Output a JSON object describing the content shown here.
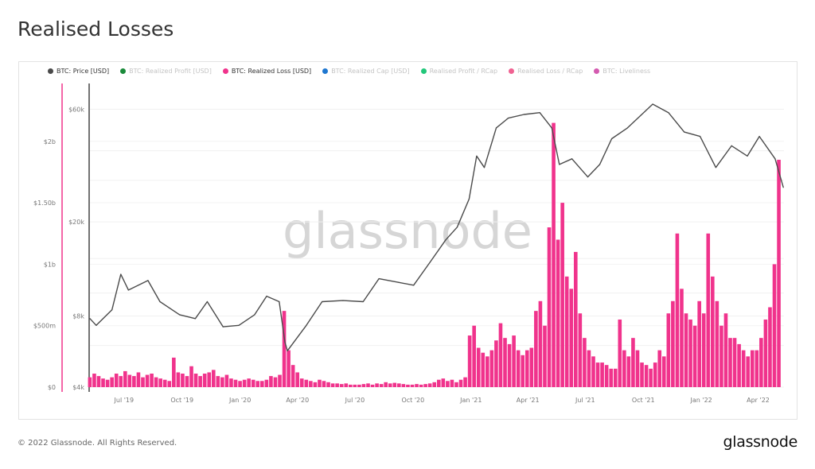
{
  "title": "Realised Losses",
  "footer": "© 2022 Glassnode. All Rights Reserved.",
  "logo_text": "glassnode",
  "watermark": "glassnode",
  "legend": [
    {
      "label": "BTC: Price [USD]",
      "color": "#4a4a4a",
      "active": true
    },
    {
      "label": "BTC: Realized Profit [USD]",
      "color": "#1a8a3a",
      "active": false
    },
    {
      "label": "BTC: Realized Loss [USD]",
      "color": "#f0338c",
      "active": true
    },
    {
      "label": "BTC: Realized Cap [USD]",
      "color": "#1f77d0",
      "active": false
    },
    {
      "label": "Realised Profit / RCap",
      "color": "#22c77a",
      "active": false
    },
    {
      "label": "Realised Loss / RCap",
      "color": "#f06292",
      "active": false
    },
    {
      "label": "BTC: Liveliness",
      "color": "#d45bb0",
      "active": false
    }
  ],
  "chart_data": {
    "type": "bar+line",
    "title": "Realised Losses",
    "x_range": [
      "2019-05-08",
      "2022-05-12"
    ],
    "x_ticks": [
      {
        "date": "2019-07-01",
        "label": "Jul '19"
      },
      {
        "date": "2019-10-01",
        "label": "Oct '19"
      },
      {
        "date": "2020-01-01",
        "label": "Jan '20"
      },
      {
        "date": "2020-04-01",
        "label": "Apr '20"
      },
      {
        "date": "2020-07-01",
        "label": "Jul '20"
      },
      {
        "date": "2020-10-01",
        "label": "Oct '20"
      },
      {
        "date": "2021-01-01",
        "label": "Jan '21"
      },
      {
        "date": "2021-04-01",
        "label": "Apr '21"
      },
      {
        "date": "2021-07-01",
        "label": "Jul '21"
      },
      {
        "date": "2021-10-01",
        "label": "Oct '21"
      },
      {
        "date": "2022-01-01",
        "label": "Jan '22"
      },
      {
        "date": "2022-04-01",
        "label": "Apr '22"
      }
    ],
    "left_axis": {
      "series": "BTC: Realized Loss [USD]",
      "scale": "linear",
      "range": [
        0,
        2300000000
      ],
      "ticks": [
        {
          "v": 0,
          "label": "$0"
        },
        {
          "v": 500000000,
          "label": "$500m"
        },
        {
          "v": 1000000000,
          "label": "$1b"
        },
        {
          "v": 1500000000,
          "label": "$1.50b"
        },
        {
          "v": 2000000000,
          "label": "$2b"
        }
      ]
    },
    "right_axis": {
      "series": "BTC: Price [USD]",
      "scale": "log",
      "range": [
        4000,
        68000
      ],
      "ticks": [
        {
          "v": 4000,
          "label": "$4k"
        },
        {
          "v": 8000,
          "label": "$8k"
        },
        {
          "v": 20000,
          "label": "$20k"
        },
        {
          "v": 60000,
          "label": "$60k"
        }
      ]
    },
    "grid": true,
    "legend_position": "top-left",
    "series": [
      {
        "name": "BTC: Realized Loss [USD]",
        "kind": "bar",
        "color": "#f0338c",
        "unit": "USD millions",
        "start": "2019-05-08",
        "interval_days": 7,
        "values": [
          80,
          110,
          90,
          70,
          60,
          80,
          110,
          90,
          130,
          100,
          90,
          120,
          80,
          100,
          110,
          80,
          70,
          60,
          50,
          240,
          120,
          110,
          90,
          170,
          110,
          90,
          110,
          120,
          140,
          90,
          80,
          100,
          70,
          60,
          50,
          60,
          70,
          60,
          50,
          50,
          60,
          90,
          80,
          100,
          620,
          300,
          180,
          120,
          70,
          60,
          50,
          40,
          60,
          50,
          40,
          30,
          30,
          25,
          30,
          20,
          20,
          20,
          25,
          30,
          20,
          30,
          25,
          40,
          30,
          35,
          30,
          25,
          20,
          20,
          25,
          20,
          25,
          30,
          40,
          60,
          70,
          50,
          60,
          40,
          60,
          80,
          420,
          500,
          320,
          280,
          250,
          300,
          380,
          520,
          400,
          350,
          420,
          300,
          260,
          300,
          320,
          620,
          700,
          500,
          1300,
          2150,
          1200,
          1500,
          900,
          800,
          1100,
          600,
          400,
          300,
          250,
          200,
          200,
          180,
          150,
          150,
          550,
          300,
          250,
          400,
          300,
          200,
          180,
          150,
          200,
          300,
          250,
          600,
          700,
          1250,
          800,
          600,
          550,
          500,
          700,
          600,
          1250,
          900,
          700,
          500,
          600,
          400,
          400,
          350,
          300,
          250,
          300,
          300,
          400,
          550,
          650,
          1000,
          1850
        ]
      },
      {
        "name": "BTC: Price [USD]",
        "kind": "line",
        "color": "#4a4a4a",
        "points": [
          [
            "2019-05-08",
            7800
          ],
          [
            "2019-05-18",
            7300
          ],
          [
            "2019-06-12",
            8500
          ],
          [
            "2019-06-26",
            12000
          ],
          [
            "2019-07-08",
            10300
          ],
          [
            "2019-08-08",
            11300
          ],
          [
            "2019-08-27",
            9200
          ],
          [
            "2019-09-27",
            8100
          ],
          [
            "2019-10-22",
            7800
          ],
          [
            "2019-11-10",
            9200
          ],
          [
            "2019-12-05",
            7200
          ],
          [
            "2019-12-30",
            7300
          ],
          [
            "2020-01-24",
            8100
          ],
          [
            "2020-02-12",
            9700
          ],
          [
            "2020-03-03",
            9200
          ],
          [
            "2020-03-12",
            6200
          ],
          [
            "2020-03-16",
            5700
          ],
          [
            "2020-04-15",
            7300
          ],
          [
            "2020-05-10",
            9200
          ],
          [
            "2020-06-12",
            9300
          ],
          [
            "2020-07-14",
            9200
          ],
          [
            "2020-08-08",
            11500
          ],
          [
            "2020-09-08",
            11100
          ],
          [
            "2020-10-02",
            10800
          ],
          [
            "2020-10-28",
            13500
          ],
          [
            "2020-11-22",
            16800
          ],
          [
            "2020-12-10",
            19000
          ],
          [
            "2020-12-29",
            25000
          ],
          [
            "2021-01-10",
            38000
          ],
          [
            "2021-01-22",
            34000
          ],
          [
            "2021-02-10",
            50000
          ],
          [
            "2021-03-01",
            55000
          ],
          [
            "2021-03-26",
            57000
          ],
          [
            "2021-04-20",
            58000
          ],
          [
            "2021-05-09",
            50000
          ],
          [
            "2021-05-21",
            35000
          ],
          [
            "2021-06-10",
            37000
          ],
          [
            "2021-07-05",
            31000
          ],
          [
            "2021-07-24",
            35000
          ],
          [
            "2021-08-12",
            45000
          ],
          [
            "2021-09-06",
            50000
          ],
          [
            "2021-10-16",
            63000
          ],
          [
            "2021-11-10",
            58000
          ],
          [
            "2021-12-05",
            48000
          ],
          [
            "2021-12-30",
            46000
          ],
          [
            "2022-01-24",
            34000
          ],
          [
            "2022-02-18",
            42000
          ],
          [
            "2022-03-15",
            38000
          ],
          [
            "2022-04-03",
            46000
          ],
          [
            "2022-04-28",
            37000
          ],
          [
            "2022-05-11",
            28000
          ]
        ]
      }
    ]
  }
}
